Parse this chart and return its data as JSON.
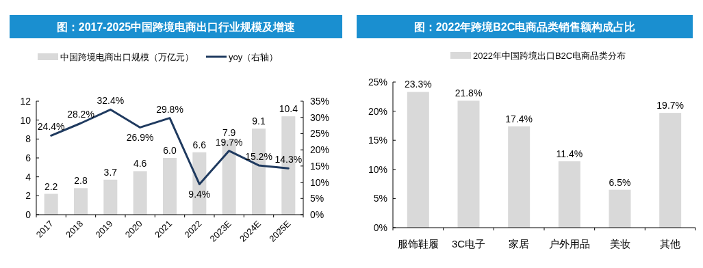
{
  "chart_data": [
    {
      "type": "bar",
      "title": "图：2017-2025中国跨境电商出口行业规模及增速",
      "categories": [
        "2017",
        "2018",
        "2019",
        "2020",
        "2021",
        "2022",
        "2023E",
        "2024E",
        "2025E"
      ],
      "series": [
        {
          "name": "中国跨境电商出口规模（万亿元）",
          "color": "#d9d9d9",
          "values": [
            2.2,
            2.8,
            3.7,
            4.6,
            6.0,
            6.6,
            7.9,
            9.1,
            10.4
          ],
          "value_labels": [
            "2.2",
            "2.8",
            "3.7",
            "4.6",
            "6.0",
            "6.6",
            "7.9",
            "9.1",
            "10.4"
          ]
        },
        {
          "name": "yoy（右轴）",
          "type": "line",
          "axis": "y2",
          "color": "#1f3a5f",
          "values": [
            24.4,
            28.2,
            32.4,
            26.9,
            29.8,
            9.4,
            19.7,
            15.2,
            14.3
          ],
          "value_labels": [
            "24.4%",
            "28.2%",
            "32.4%",
            "26.9%",
            "29.8%",
            "9.4%",
            "19.7%",
            "15.2%",
            "14.3%"
          ]
        }
      ],
      "ylim": [
        0,
        12
      ],
      "yticks": [
        0,
        2,
        4,
        6,
        8,
        10,
        12
      ],
      "y2lim": [
        0,
        35
      ],
      "y2ticks": [
        {
          "value": 0,
          "label": "0%"
        },
        {
          "value": 5,
          "label": "5%"
        },
        {
          "value": 10,
          "label": "10%"
        },
        {
          "value": 15,
          "label": "15%"
        },
        {
          "value": 20,
          "label": "20%"
        },
        {
          "value": 25,
          "label": "25%"
        },
        {
          "value": 30,
          "label": "30%"
        },
        {
          "value": 35,
          "label": "35%"
        }
      ],
      "legend": "top"
    },
    {
      "type": "bar",
      "title": "图：2022年跨境B2C电商品类销售额构成占比",
      "categories": [
        "服饰鞋履",
        "3C电子",
        "家居",
        "户外用品",
        "美妆",
        "其他"
      ],
      "series": [
        {
          "name": "2022年中国跨境出口B2C电商品类分布",
          "color": "#d9d9d9",
          "values": [
            23.3,
            21.8,
            17.4,
            11.4,
            6.5,
            19.7
          ],
          "value_labels": [
            "23.3%",
            "21.8%",
            "17.4%",
            "11.4%",
            "6.5%",
            "19.7%"
          ]
        }
      ],
      "ylim": [
        0,
        25
      ],
      "yticks": [
        {
          "value": 0,
          "label": "0%"
        },
        {
          "value": 5,
          "label": "5%"
        },
        {
          "value": 10,
          "label": "10%"
        },
        {
          "value": 15,
          "label": "15%"
        },
        {
          "value": 20,
          "label": "20%"
        },
        {
          "value": 25,
          "label": "25%"
        }
      ],
      "legend": "top"
    }
  ]
}
